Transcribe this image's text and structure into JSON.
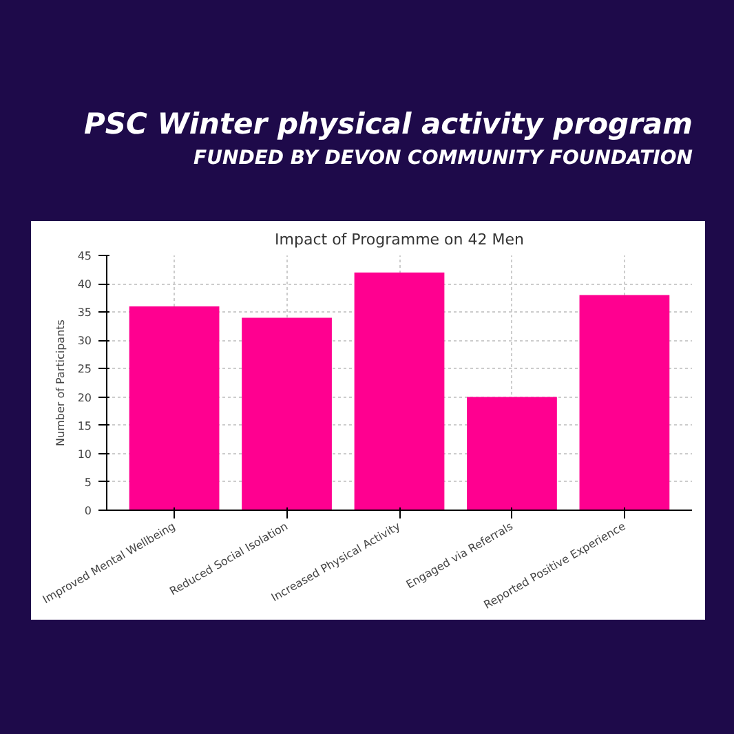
{
  "chart_data": {
    "type": "bar",
    "title": "PSC Winter physical activity program",
    "subtitle": "FUNDED BY DEVON COMMUNITY FOUNDATION",
    "annotations": [
      "Impact of Programme on 42 Men"
    ],
    "ylabel": "Number of Participants",
    "categories": [
      "Improved Mental Wellbeing",
      "Reduced Social Isolation",
      "Increased Physical Activity",
      "Engaged via Referrals",
      "Reported Positive Experience"
    ],
    "values": [
      36,
      34,
      42,
      20,
      38
    ],
    "color": "#ff0090",
    "ylim": [
      0,
      45
    ],
    "yticks": [
      0,
      5,
      10,
      15,
      20,
      25,
      30,
      35,
      40,
      45
    ],
    "grid": true
  }
}
